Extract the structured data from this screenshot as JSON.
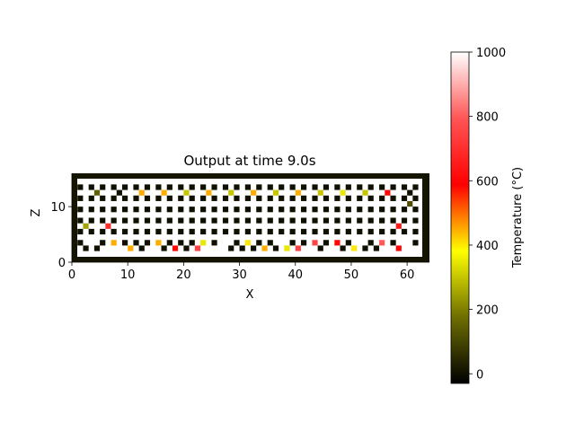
{
  "chart_data": [
    {
      "type": "heatmap",
      "title": "Output at time 9.0s",
      "xlabel": "X",
      "ylabel": "Z",
      "xlim": [
        0,
        64
      ],
      "ylim": [
        0,
        16
      ],
      "x_ticks": [
        0,
        10,
        20,
        30,
        40,
        50,
        60
      ],
      "y_ticks": [
        0,
        10
      ],
      "border_color": "#141400",
      "background_color": "#ffffff",
      "cell_size": 1,
      "rows": [
        {
          "z": 13.5,
          "x": [
            1.5,
            3.5,
            5.5,
            7.5,
            9.5,
            11.5,
            13.5,
            15.5,
            17.5,
            19.5,
            21.5,
            23.5,
            25.5,
            27.5,
            29.5,
            31.5,
            33.5,
            35.5,
            37.5,
            39.5,
            41.5,
            43.5,
            45.5,
            47.5,
            49.5,
            51.5,
            53.5,
            55.5,
            57.5,
            59.5,
            61.5
          ],
          "temps": [
            0,
            0,
            0,
            0,
            0,
            0,
            0,
            0,
            0,
            0,
            0,
            0,
            0,
            0,
            0,
            0,
            0,
            0,
            0,
            0,
            0,
            0,
            0,
            0,
            0,
            0,
            0,
            0,
            0,
            0,
            0
          ]
        },
        {
          "z": 12.5,
          "x": [
            4.5,
            8.5,
            12.5,
            16.5,
            20.5,
            24.5,
            28.5,
            32.5,
            36.5,
            40.5,
            44.5,
            48.5,
            52.5,
            56.5,
            60.5
          ],
          "temps": [
            150,
            0,
            450,
            450,
            300,
            450,
            300,
            450,
            300,
            450,
            300,
            350,
            300,
            600,
            0
          ]
        },
        {
          "z": 11.5,
          "x": [
            1.5,
            3.5,
            5.5,
            7.5,
            9.5,
            11.5,
            13.5,
            15.5,
            17.5,
            19.5,
            21.5,
            23.5,
            25.5,
            27.5,
            29.5,
            31.5,
            33.5,
            35.5,
            37.5,
            39.5,
            41.5,
            43.5,
            45.5,
            47.5,
            49.5,
            51.5,
            53.5,
            55.5,
            57.5,
            59.5,
            61.5
          ],
          "temps": [
            0,
            0,
            0,
            0,
            0,
            0,
            0,
            0,
            0,
            0,
            0,
            0,
            0,
            0,
            0,
            0,
            0,
            0,
            0,
            0,
            0,
            0,
            0,
            0,
            0,
            0,
            0,
            0,
            0,
            0,
            0
          ]
        },
        {
          "z": 10.5,
          "x": [
            60.5
          ],
          "temps": [
            120
          ]
        },
        {
          "z": 9.5,
          "x": [
            1.5,
            3.5,
            5.5,
            7.5,
            9.5,
            11.5,
            13.5,
            15.5,
            17.5,
            19.5,
            21.5,
            23.5,
            25.5,
            27.5,
            29.5,
            31.5,
            33.5,
            35.5,
            37.5,
            39.5,
            41.5,
            43.5,
            45.5,
            47.5,
            49.5,
            51.5,
            53.5,
            55.5,
            57.5,
            59.5,
            61.5
          ],
          "temps": [
            0,
            0,
            0,
            0,
            0,
            0,
            0,
            0,
            0,
            0,
            0,
            0,
            0,
            0,
            0,
            0,
            0,
            0,
            0,
            0,
            0,
            0,
            0,
            0,
            0,
            0,
            0,
            0,
            0,
            0,
            0
          ]
        },
        {
          "z": 7.5,
          "x": [
            1.5,
            3.5,
            5.5,
            7.5,
            9.5,
            11.5,
            13.5,
            15.5,
            17.5,
            19.5,
            21.5,
            23.5,
            25.5,
            27.5,
            29.5,
            31.5,
            33.5,
            35.5,
            37.5,
            39.5,
            41.5,
            43.5,
            45.5,
            47.5,
            49.5,
            51.5,
            53.5,
            55.5,
            57.5,
            59.5,
            61.5
          ],
          "temps": [
            0,
            0,
            0,
            0,
            0,
            0,
            0,
            0,
            0,
            0,
            0,
            0,
            0,
            0,
            0,
            0,
            0,
            0,
            0,
            0,
            0,
            0,
            0,
            0,
            0,
            0,
            0,
            0,
            0,
            0,
            0
          ]
        },
        {
          "z": 6.5,
          "x": [
            2.5,
            6.5,
            58.5
          ],
          "temps": [
            250,
            700,
            650
          ]
        },
        {
          "z": 5.5,
          "x": [
            1.5,
            3.5,
            5.5,
            7.5,
            9.5,
            11.5,
            13.5,
            15.5,
            17.5,
            19.5,
            21.5,
            23.5,
            25.5,
            27.5,
            29.5,
            31.5,
            33.5,
            35.5,
            37.5,
            39.5,
            41.5,
            43.5,
            45.5,
            47.5,
            49.5,
            51.5,
            53.5,
            55.5,
            57.5,
            59.5,
            61.5
          ],
          "temps": [
            0,
            0,
            0,
            0,
            0,
            0,
            0,
            0,
            0,
            0,
            0,
            0,
            0,
            0,
            0,
            0,
            0,
            0,
            0,
            0,
            0,
            0,
            0,
            0,
            0,
            0,
            0,
            0,
            0,
            0,
            0
          ]
        },
        {
          "z": 3.5,
          "x": [
            1.5,
            5.5,
            7.5,
            9.5,
            11.5,
            13.5,
            15.5,
            17.5,
            19.5,
            21.5,
            23.5,
            25.5,
            29.5,
            31.5,
            33.5,
            35.5,
            39.5,
            41.5,
            43.5,
            45.5,
            47.5,
            49.5,
            53.5,
            55.5,
            57.5,
            61.5
          ],
          "temps": [
            0,
            0,
            450,
            0,
            0,
            0,
            450,
            0,
            0,
            0,
            350,
            0,
            0,
            400,
            0,
            0,
            0,
            0,
            750,
            0,
            600,
            0,
            0,
            800,
            0,
            0
          ]
        },
        {
          "z": 2.5,
          "x": [
            2.5,
            4.5,
            10.5,
            12.5,
            16.5,
            18.5,
            20.5,
            22.5,
            28.5,
            30.5,
            32.5,
            34.5,
            36.5,
            38.5,
            40.5,
            44.5,
            48.5,
            50.5,
            52.5,
            54.5,
            58.5
          ],
          "temps": [
            0,
            0,
            450,
            0,
            0,
            600,
            0,
            750,
            0,
            0,
            0,
            450,
            0,
            350,
            750,
            0,
            0,
            400,
            0,
            0,
            600
          ]
        }
      ]
    },
    {
      "type": "colorbar",
      "label": "Temperature (°C)",
      "range": [
        -30,
        1000
      ],
      "ticks": [
        0,
        200,
        400,
        600,
        800,
        1000
      ],
      "colormap": [
        {
          "v": 0.0,
          "c": "#000000"
        },
        {
          "v": 0.2,
          "c": "#6e6e00"
        },
        {
          "v": 0.4,
          "c": "#ffff00"
        },
        {
          "v": 0.6,
          "c": "#ff0000"
        },
        {
          "v": 0.8,
          "c": "#ff5555"
        },
        {
          "v": 1.0,
          "c": "#ffffff"
        }
      ]
    }
  ]
}
